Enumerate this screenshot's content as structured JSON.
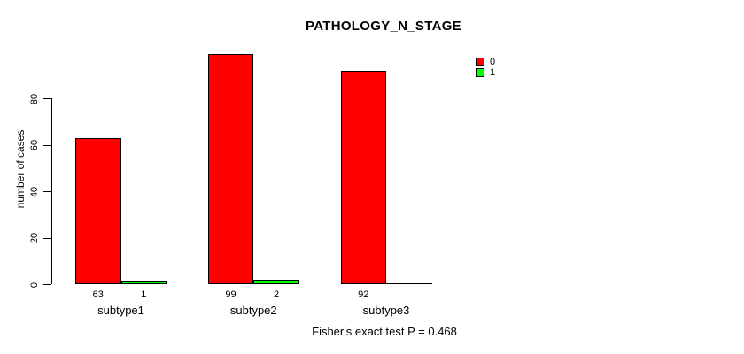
{
  "title": "PATHOLOGY_N_STAGE",
  "footer": "Fisher's exact test P = 0.468",
  "legend": [
    {
      "label": "0",
      "color": "#ff0000"
    },
    {
      "label": "1",
      "color": "#00ff00"
    }
  ],
  "chart_data": {
    "type": "bar",
    "title": "PATHOLOGY_N_STAGE",
    "xlabel": "",
    "ylabel": "number of cases",
    "categories": [
      "subtype1",
      "subtype2",
      "subtype3"
    ],
    "series": [
      {
        "name": "0",
        "color": "#ff0000",
        "values": [
          63,
          99,
          92
        ]
      },
      {
        "name": "1",
        "color": "#00ff00",
        "values": [
          1,
          2,
          0
        ]
      }
    ],
    "bar_value_labels_shown": [
      [
        63,
        1
      ],
      [
        99,
        2
      ],
      [
        92,
        null
      ]
    ],
    "yticks": [
      0,
      20,
      40,
      60,
      80
    ],
    "ylim": [
      0,
      100
    ],
    "grid": false,
    "legend_position": "right",
    "legend_entries": [
      "0",
      "1"
    ],
    "annotation": "Fisher's exact test P = 0.468"
  }
}
